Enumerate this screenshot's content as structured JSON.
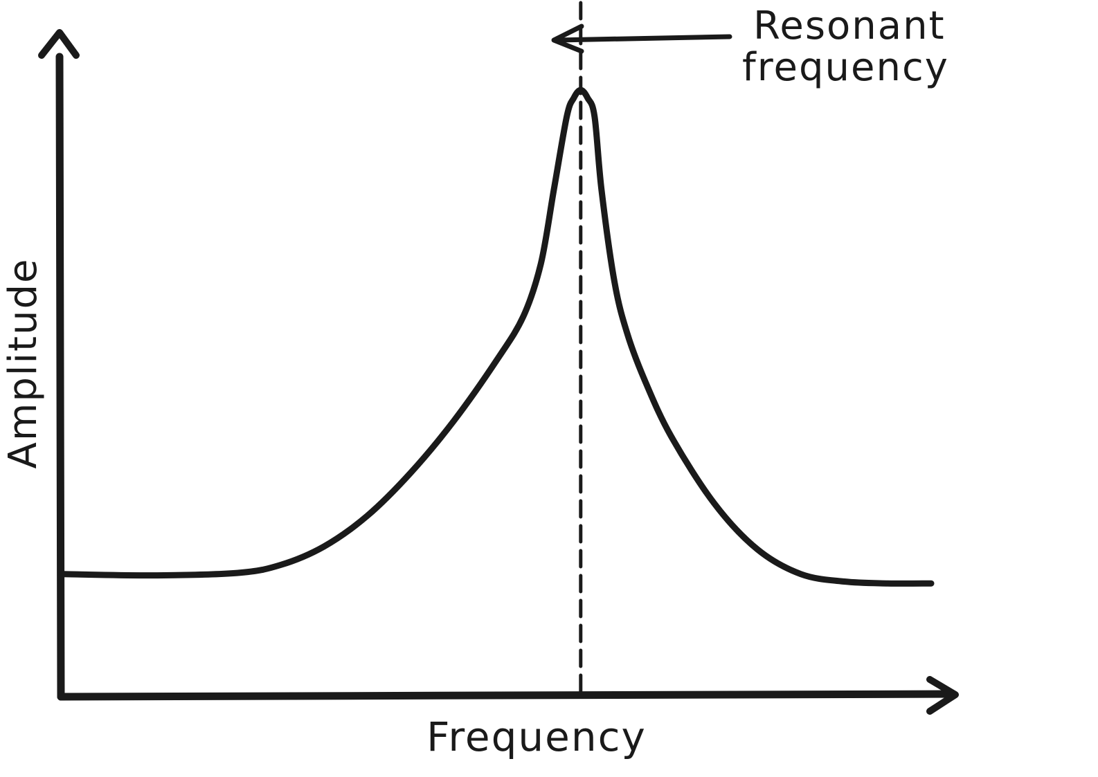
{
  "chart_data": {
    "type": "line",
    "xlabel": "Frequency",
    "ylabel": "Amplitude",
    "x_ticks_shown": false,
    "y_ticks_shown": false,
    "grid": false,
    "legend": "none",
    "xlim": [
      0,
      100
    ],
    "ylim": [
      0,
      100
    ],
    "series": [
      {
        "x": [
          0,
          10,
          20,
          25,
          30,
          35,
          40,
          45,
          50,
          53,
          55,
          56.5,
          58,
          58.8,
          59.6,
          60.4,
          61.2,
          62,
          63.5,
          65,
          67,
          70,
          75,
          80,
          85,
          90,
          95,
          100
        ],
        "y": [
          19.5,
          19.3,
          19.7,
          21,
          24,
          29,
          36,
          44.5,
          54.5,
          61.5,
          70,
          82,
          94,
          97,
          98.3,
          97,
          94,
          82,
          67,
          58.5,
          51,
          42,
          31,
          23.5,
          19.5,
          18.3,
          18,
          18
        ]
      }
    ],
    "annotations": {
      "resonance_line": {
        "x": 59.6,
        "style": "dashed"
      },
      "callout": {
        "line1": "Resonant",
        "line2": "frequency"
      }
    }
  },
  "colors": {
    "ink": "#1a1a1a",
    "background": "#ffffff"
  }
}
